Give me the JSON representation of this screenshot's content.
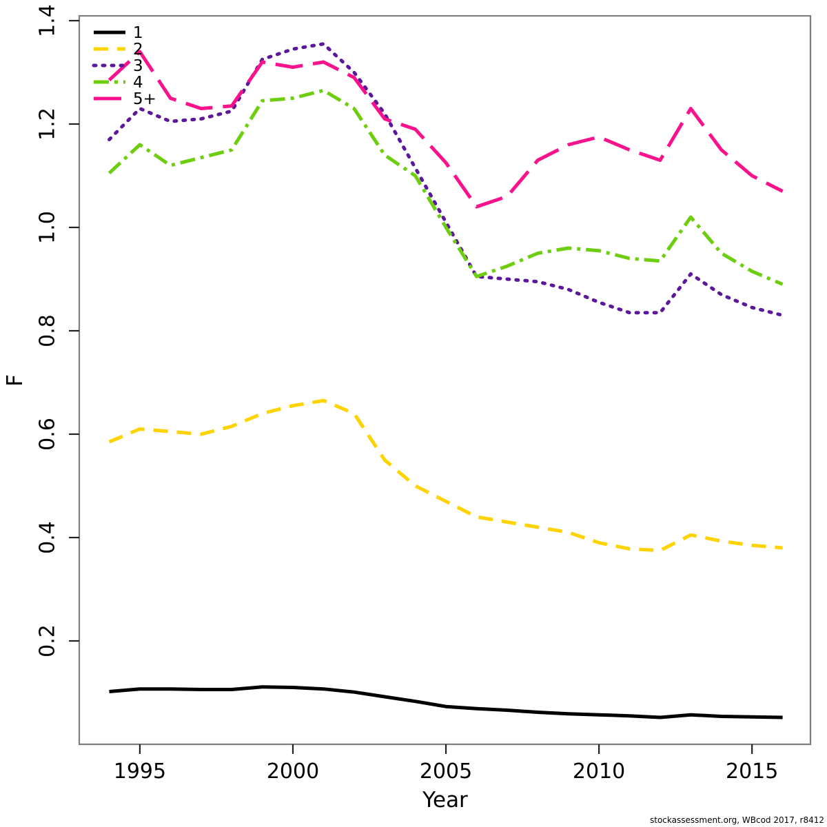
{
  "footer": "stockassessment.org, WBcod 2017, r8412",
  "chart_data": {
    "type": "line",
    "title": "",
    "xlabel": "Year",
    "ylabel": "F",
    "grid": false,
    "legend_position": "top-left",
    "xlim": [
      1993.02,
      2016.91
    ],
    "ylim": [
      0,
      1.4093
    ],
    "x_ticks": [
      1995,
      2000,
      2005,
      2010,
      2015
    ],
    "y_ticks": [
      0.2,
      0.4,
      0.6,
      0.8,
      1.0,
      1.2,
      1.4
    ],
    "y_tick_labels": [
      "0.2",
      "0.4",
      "0.6",
      "0.8",
      "1.0",
      "1.2",
      "1.4"
    ],
    "x": [
      1994,
      1995,
      1996,
      1997,
      1998,
      1999,
      2000,
      2001,
      2002,
      2003,
      2004,
      2005,
      2006,
      2007,
      2008,
      2009,
      2010,
      2011,
      2012,
      2013,
      2014,
      2015,
      2016
    ],
    "series": [
      {
        "name": "1",
        "color": "#000000",
        "linestyle": "solid",
        "values": [
          0.102,
          0.107,
          0.107,
          0.106,
          0.106,
          0.111,
          0.11,
          0.107,
          0.101,
          0.092,
          0.083,
          0.073,
          0.069,
          0.066,
          0.062,
          0.059,
          0.057,
          0.055,
          0.052,
          0.057,
          0.054,
          0.053,
          0.052
        ]
      },
      {
        "name": "2",
        "color": "#FFD300",
        "linestyle": "dashed",
        "values": [
          0.585,
          0.61,
          0.605,
          0.6,
          0.615,
          0.64,
          0.655,
          0.665,
          0.64,
          0.55,
          0.5,
          0.47,
          0.44,
          0.43,
          0.42,
          0.41,
          0.39,
          0.378,
          0.375,
          0.405,
          0.393,
          0.385,
          0.38
        ]
      },
      {
        "name": "3",
        "color": "#5B189B",
        "linestyle": "dotted",
        "values": [
          1.17,
          1.23,
          1.205,
          1.21,
          1.225,
          1.325,
          1.345,
          1.355,
          1.3,
          1.22,
          1.115,
          1.01,
          0.905,
          0.9,
          0.895,
          0.88,
          0.855,
          0.835,
          0.835,
          0.91,
          0.87,
          0.845,
          0.83
        ]
      },
      {
        "name": "4",
        "color": "#6CCE0E",
        "linestyle": "dashdot",
        "values": [
          1.105,
          1.16,
          1.12,
          1.135,
          1.15,
          1.245,
          1.25,
          1.265,
          1.23,
          1.14,
          1.1,
          1.0,
          0.905,
          0.925,
          0.95,
          0.96,
          0.955,
          0.94,
          0.935,
          1.02,
          0.95,
          0.915,
          0.89
        ]
      },
      {
        "name": "5+",
        "color": "#F8128C",
        "linestyle": "longdash",
        "values": [
          1.285,
          1.34,
          1.25,
          1.23,
          1.235,
          1.32,
          1.31,
          1.32,
          1.29,
          1.21,
          1.19,
          1.125,
          1.04,
          1.06,
          1.13,
          1.16,
          1.175,
          1.15,
          1.13,
          1.23,
          1.15,
          1.1,
          1.07
        ]
      }
    ]
  }
}
